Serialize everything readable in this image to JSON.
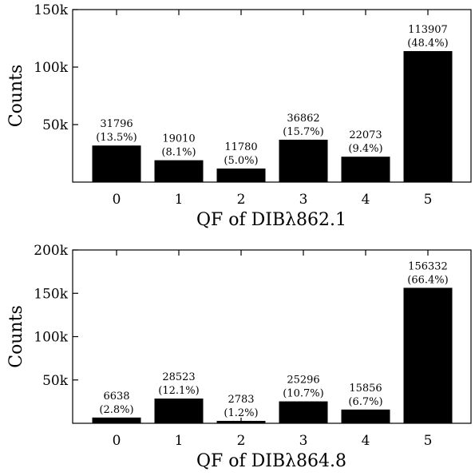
{
  "chart_data": [
    {
      "type": "bar",
      "categories": [
        "0",
        "1",
        "2",
        "3",
        "4",
        "5"
      ],
      "values": [
        31796,
        19010,
        11780,
        36862,
        22073,
        113907
      ],
      "value_labels": [
        "31796",
        "19010",
        "11780",
        "36862",
        "22073",
        "113907"
      ],
      "percent_labels": [
        "(13.5%)",
        "(8.1%)",
        "(5.0%)",
        "(15.7%)",
        "(9.4%)",
        "(48.4%)"
      ],
      "xlabel": "QF of DIBλ862.1",
      "ylabel": "Counts",
      "ylim": [
        0,
        150000
      ],
      "yticks": [
        50000,
        100000,
        150000
      ],
      "ytick_labels": [
        "50k",
        "100k",
        "150k"
      ],
      "bar_color": "#000000",
      "grid": false
    },
    {
      "type": "bar",
      "categories": [
        "0",
        "1",
        "2",
        "3",
        "4",
        "5"
      ],
      "values": [
        6638,
        28523,
        2783,
        25296,
        15856,
        156332
      ],
      "value_labels": [
        "6638",
        "28523",
        "2783",
        "25296",
        "15856",
        "156332"
      ],
      "percent_labels": [
        "(2.8%)",
        "(12.1%)",
        "(1.2%)",
        "(10.7%)",
        "(6.7%)",
        "(66.4%)"
      ],
      "xlabel": "QF of DIBλ864.8",
      "ylabel": "Counts",
      "ylim": [
        0,
        200000
      ],
      "yticks": [
        50000,
        100000,
        150000,
        200000
      ],
      "ytick_labels": [
        "50k",
        "100k",
        "150k",
        "200k"
      ],
      "bar_color": "#000000",
      "grid": false
    }
  ]
}
